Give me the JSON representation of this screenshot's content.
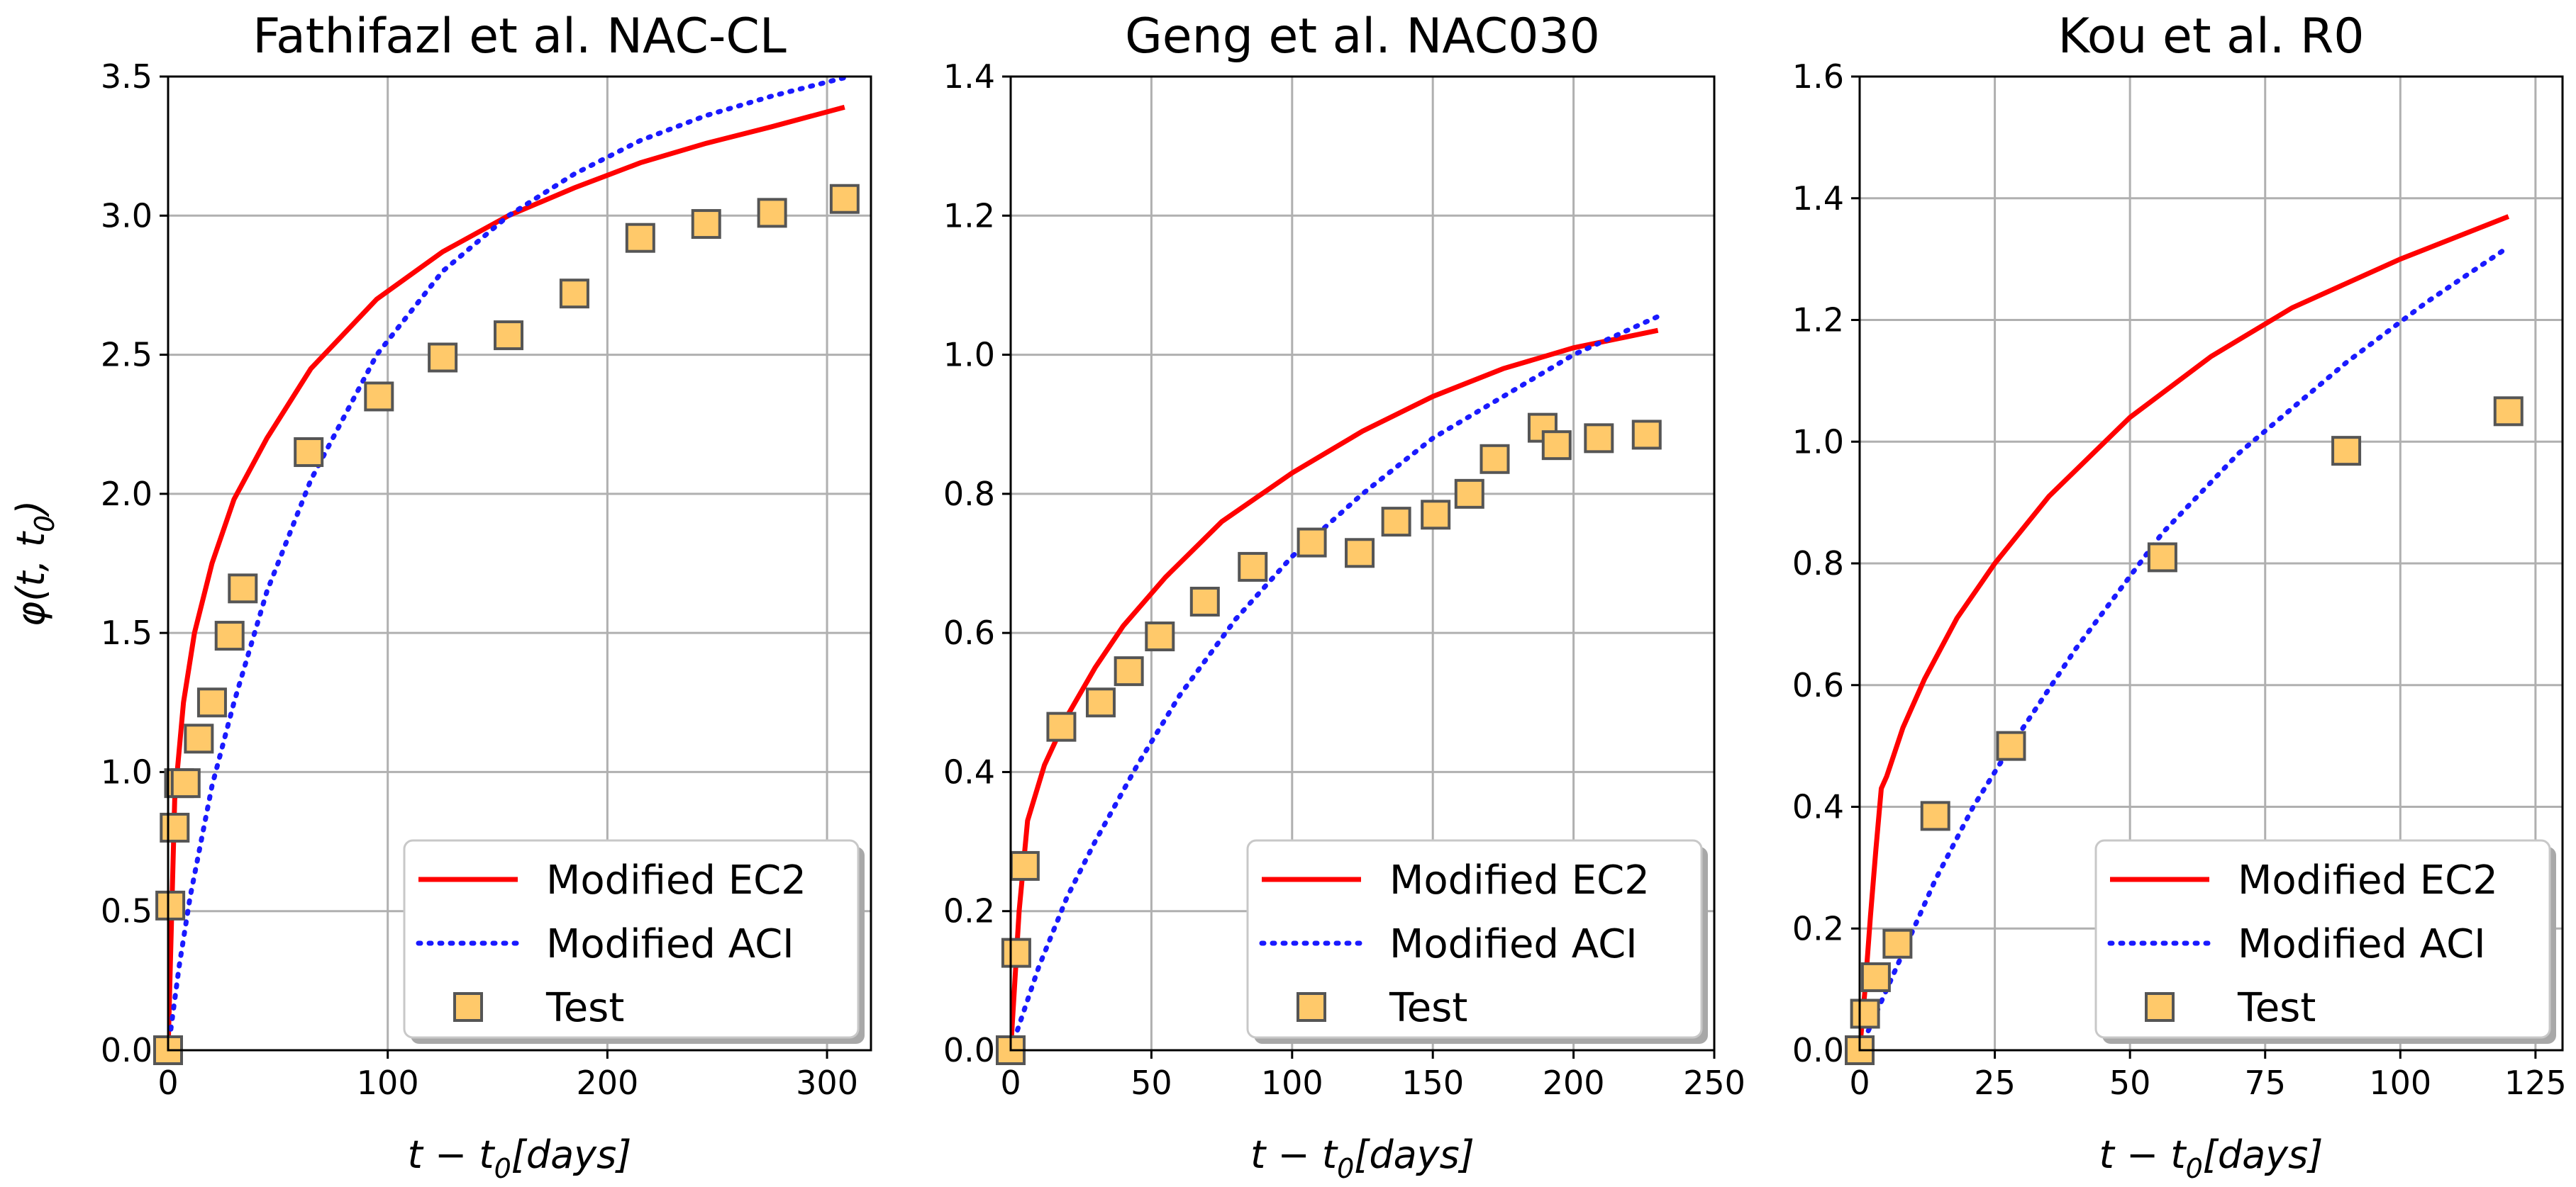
{
  "chart_data": [
    {
      "type": "line+scatter",
      "title": "Fathifazl et al.  NAC-CL",
      "xlabel": "t − t",
      "xlabel_sub": "0",
      "xlabel_rest": "[days]",
      "ylabel": "φ(t, t",
      "ylabel_sub": "0",
      "ylabel_rest": ")",
      "xlim": [
        0,
        320
      ],
      "ylim": [
        0,
        3.5
      ],
      "xticks": [
        0,
        100,
        200,
        300
      ],
      "yticks": [
        0.0,
        0.5,
        1.0,
        1.5,
        2.0,
        2.5,
        3.0,
        3.5
      ],
      "xtick_labels": [
        "0",
        "100",
        "200",
        "300"
      ],
      "ytick_labels": [
        "0.0",
        "0.5",
        "1.0",
        "1.5",
        "2.0",
        "2.5",
        "3.0",
        "3.5"
      ],
      "legend_position": "lower-right",
      "series": [
        {
          "name": "Modified EC2",
          "style": "solid-red",
          "x": [
            0,
            3,
            7,
            12,
            20,
            30,
            45,
            65,
            95,
            125,
            155,
            185,
            215,
            245,
            275,
            308
          ],
          "y": [
            0.0,
            0.9,
            1.25,
            1.5,
            1.75,
            1.98,
            2.2,
            2.45,
            2.7,
            2.87,
            3.0,
            3.1,
            3.19,
            3.26,
            3.32,
            3.39
          ]
        },
        {
          "name": "Modified ACI",
          "style": "dotted-blue",
          "x": [
            0,
            5,
            10,
            20,
            30,
            45,
            65,
            95,
            125,
            155,
            185,
            215,
            245,
            275,
            310
          ],
          "y": [
            0.0,
            0.3,
            0.55,
            0.95,
            1.25,
            1.65,
            2.05,
            2.5,
            2.8,
            3.0,
            3.15,
            3.27,
            3.36,
            3.43,
            3.5
          ]
        },
        {
          "name": "Test",
          "style": "square-marker",
          "x": [
            0,
            1,
            3,
            5,
            8,
            14,
            20,
            28,
            34,
            64,
            96,
            125,
            155,
            185,
            215,
            245,
            275,
            308
          ],
          "y": [
            0.0,
            0.52,
            0.8,
            0.96,
            0.96,
            1.12,
            1.25,
            1.49,
            1.66,
            2.15,
            2.35,
            2.49,
            2.57,
            2.72,
            2.92,
            2.97,
            3.01,
            3.06
          ]
        }
      ]
    },
    {
      "type": "line+scatter",
      "title": "Geng et al.  NAC030",
      "xlabel": "t − t",
      "xlabel_sub": "0",
      "xlabel_rest": "[days]",
      "xlim": [
        0,
        250
      ],
      "ylim": [
        0,
        1.4
      ],
      "xticks": [
        0,
        50,
        100,
        150,
        200,
        250
      ],
      "yticks": [
        0.0,
        0.2,
        0.4,
        0.6,
        0.8,
        1.0,
        1.2,
        1.4
      ],
      "xtick_labels": [
        "0",
        "50",
        "100",
        "150",
        "200",
        "250"
      ],
      "ytick_labels": [
        "0.0",
        "0.2",
        "0.4",
        "0.6",
        "0.8",
        "1.0",
        "1.2",
        "1.4"
      ],
      "legend_position": "lower-right",
      "series": [
        {
          "name": "Modified EC2",
          "style": "solid-red",
          "x": [
            0,
            3,
            6,
            12,
            20,
            30,
            40,
            55,
            75,
            100,
            125,
            150,
            175,
            200,
            230
          ],
          "y": [
            0.0,
            0.2,
            0.33,
            0.41,
            0.48,
            0.55,
            0.61,
            0.68,
            0.76,
            0.83,
            0.89,
            0.94,
            0.98,
            1.01,
            1.035
          ]
        },
        {
          "name": "Modified ACI",
          "style": "dotted-blue",
          "x": [
            0,
            5,
            10,
            20,
            30,
            45,
            60,
            80,
            100,
            125,
            150,
            175,
            200,
            230
          ],
          "y": [
            0.0,
            0.06,
            0.12,
            0.22,
            0.3,
            0.41,
            0.51,
            0.62,
            0.71,
            0.8,
            0.88,
            0.94,
            1.0,
            1.055
          ]
        },
        {
          "name": "Test",
          "style": "square-marker",
          "x": [
            0,
            2,
            5,
            18,
            32,
            42,
            53,
            69,
            86,
            107,
            124,
            137,
            151,
            163,
            172,
            189,
            194,
            209,
            226
          ],
          "y": [
            0.0,
            0.14,
            0.265,
            0.465,
            0.5,
            0.545,
            0.595,
            0.645,
            0.695,
            0.73,
            0.715,
            0.76,
            0.77,
            0.8,
            0.85,
            0.895,
            0.87,
            0.88,
            0.885
          ]
        }
      ]
    },
    {
      "type": "line+scatter",
      "title": "Kou et al.  R0",
      "xlabel": "t − t",
      "xlabel_sub": "0",
      "xlabel_rest": "[days]",
      "xlim": [
        0,
        130
      ],
      "ylim": [
        0,
        1.6
      ],
      "xticks": [
        0,
        25,
        50,
        75,
        100,
        125
      ],
      "yticks": [
        0.0,
        0.2,
        0.4,
        0.6,
        0.8,
        1.0,
        1.2,
        1.4,
        1.6
      ],
      "xtick_labels": [
        "0",
        "25",
        "50",
        "75",
        "100",
        "125"
      ],
      "ytick_labels": [
        "0.0",
        "0.2",
        "0.4",
        "0.6",
        "0.8",
        "1.0",
        "1.2",
        "1.4",
        "1.6"
      ],
      "legend_position": "lower-right",
      "series": [
        {
          "name": "Modified EC2",
          "style": "solid-red",
          "x": [
            0,
            1,
            2,
            3,
            4,
            5,
            8,
            12,
            18,
            25,
            35,
            50,
            65,
            80,
            100,
            120
          ],
          "y": [
            0.0,
            0.1,
            0.22,
            0.33,
            0.43,
            0.45,
            0.53,
            0.61,
            0.71,
            0.8,
            0.91,
            1.04,
            1.14,
            1.22,
            1.3,
            1.37
          ]
        },
        {
          "name": "Modified ACI",
          "style": "dotted-blue",
          "x": [
            0,
            3,
            7,
            14,
            21,
            28,
            40,
            56,
            70,
            90,
            105,
            120
          ],
          "y": [
            0.0,
            0.06,
            0.14,
            0.28,
            0.4,
            0.5,
            0.66,
            0.85,
            0.98,
            1.13,
            1.23,
            1.32
          ]
        },
        {
          "name": "Test",
          "style": "square-marker",
          "x": [
            0,
            1,
            3,
            7,
            14,
            28,
            56,
            90,
            120
          ],
          "y": [
            0.0,
            0.06,
            0.12,
            0.175,
            0.385,
            0.5,
            0.81,
            0.985,
            1.05
          ]
        }
      ]
    }
  ]
}
